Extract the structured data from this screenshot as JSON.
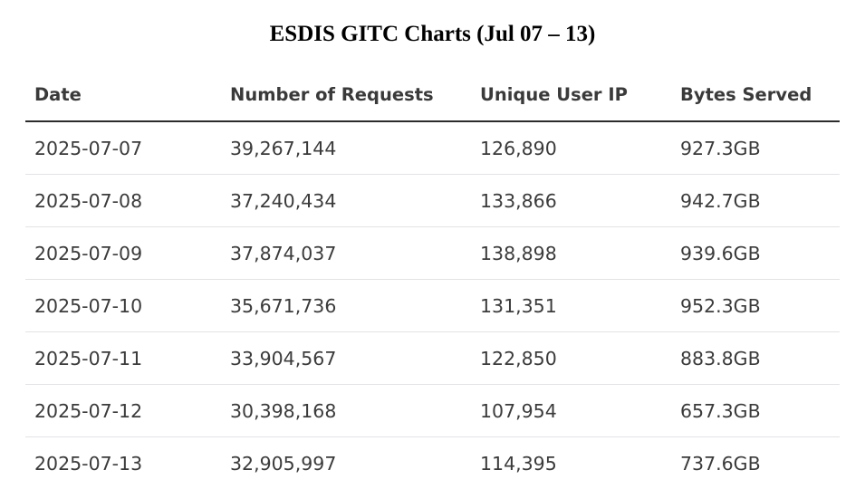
{
  "title": "ESDIS GITC Charts (Jul 07 – 13)",
  "chart_data": {
    "type": "table",
    "title": "ESDIS GITC Charts (Jul 07 – 13)",
    "columns": [
      "Date",
      "Number of Requests",
      "Unique User IP",
      "Bytes Served"
    ],
    "rows": [
      [
        "2025-07-07",
        "39,267,144",
        "126,890",
        "927.3GB"
      ],
      [
        "2025-07-08",
        "37,240,434",
        "133,866",
        "942.7GB"
      ],
      [
        "2025-07-09",
        "37,874,037",
        "138,898",
        "939.6GB"
      ],
      [
        "2025-07-10",
        "35,671,736",
        "131,351",
        "952.3GB"
      ],
      [
        "2025-07-11",
        "33,904,567",
        "122,850",
        "883.8GB"
      ],
      [
        "2025-07-12",
        "30,398,168",
        "107,954",
        "657.3GB"
      ],
      [
        "2025-07-13",
        "32,905,997",
        "114,395",
        "737.6GB"
      ]
    ]
  }
}
